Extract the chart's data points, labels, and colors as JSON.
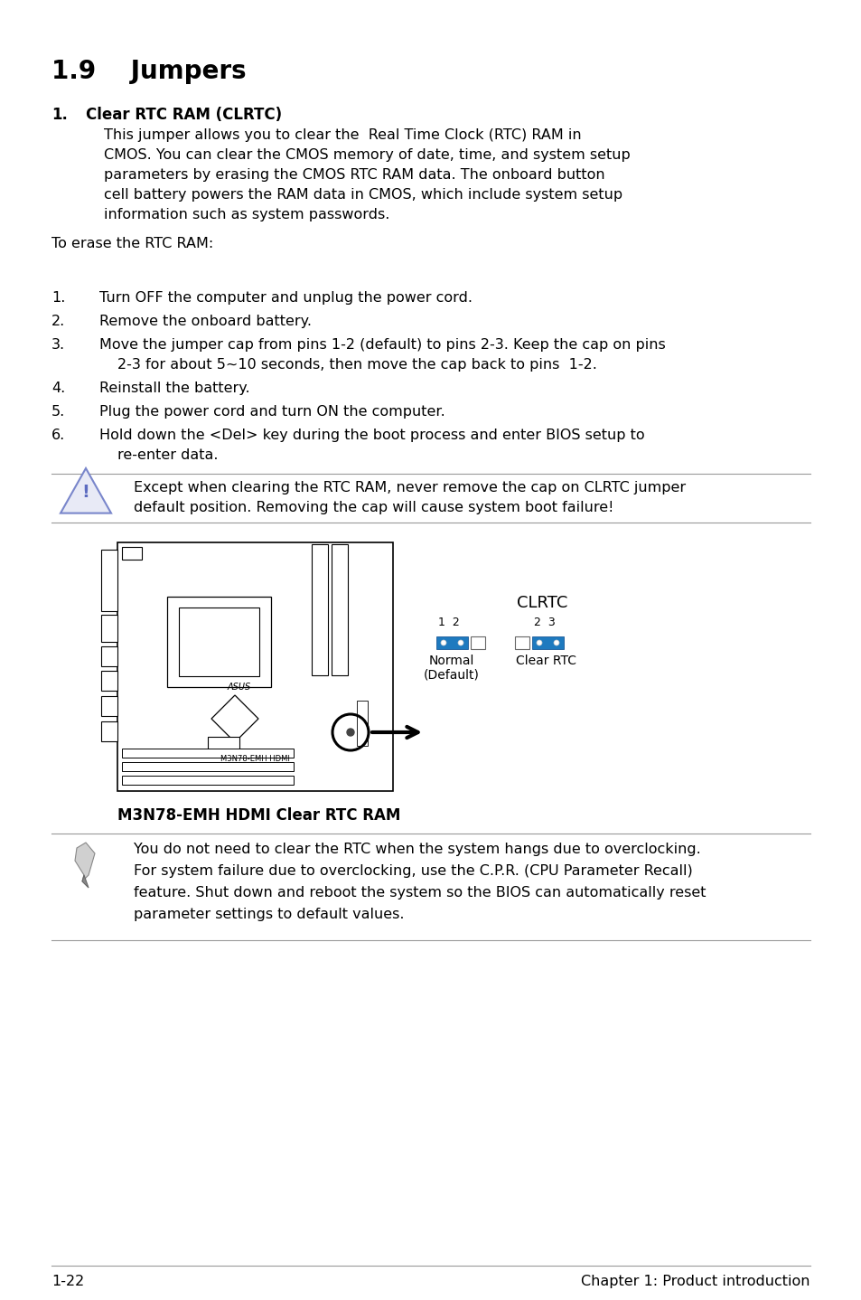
{
  "title": "1.9    Jumpers",
  "section1_num": "1.",
  "section1_bold": "Clear RTC RAM (CLRTC)",
  "body_lines": [
    "This jumper allows you to clear the  Real Time Clock (RTC) RAM in",
    "CMOS. You can clear the CMOS memory of date, time, and system setup",
    "parameters by erasing the CMOS RTC RAM data. The onboard button",
    "cell battery powers the RAM data in CMOS, which include system setup",
    "information such as system passwords."
  ],
  "erase_intro": "To erase the RTC RAM:",
  "step_nums": [
    "1.",
    "2.",
    "3.",
    "",
    "4.",
    "5.",
    "6.",
    ""
  ],
  "step_texts": [
    "Turn OFF the computer and unplug the power cord.",
    "Remove the onboard battery.",
    "Move the jumper cap from pins 1-2 (default) to pins 2-3. Keep the cap on pins",
    "2-3 for about 5~10 seconds, then move the cap back to pins  1-2.",
    "Reinstall the battery.",
    "Plug the power cord and turn ON the computer.",
    "Hold down the <Del> key during the boot process and enter BIOS setup to",
    "re-enter data."
  ],
  "step_y": [
    322,
    348,
    374,
    396,
    422,
    448,
    474,
    496
  ],
  "step_cont_x": [
    110,
    110,
    110,
    130,
    110,
    110,
    110,
    130
  ],
  "warning_text_lines": [
    "Except when clearing the RTC RAM, never remove the cap on CLRTC jumper",
    "default position. Removing the cap will cause system boot failure!"
  ],
  "clrtc_label": "CLRTC",
  "normal_label_line1": "Normal",
  "normal_label_line2": "(Default)",
  "clear_label": "Clear RTC",
  "board_caption": "M3N78-EMH HDMI Clear RTC RAM",
  "note_lines": [
    "You do not need to clear the RTC when the system hangs due to overclocking.",
    "For system failure due to overclocking, use the C.P.R. (CPU Parameter Recall)",
    "feature. Shut down and reboot the system so the BIOS can automatically reset",
    "parameter settings to default values."
  ],
  "footer_left": "1-22",
  "footer_right": "Chapter 1: Product introduction",
  "jumper_blue": "#1e7abf",
  "line_color": "#999999",
  "text_color": "#000000",
  "bg_color": "#ffffff"
}
